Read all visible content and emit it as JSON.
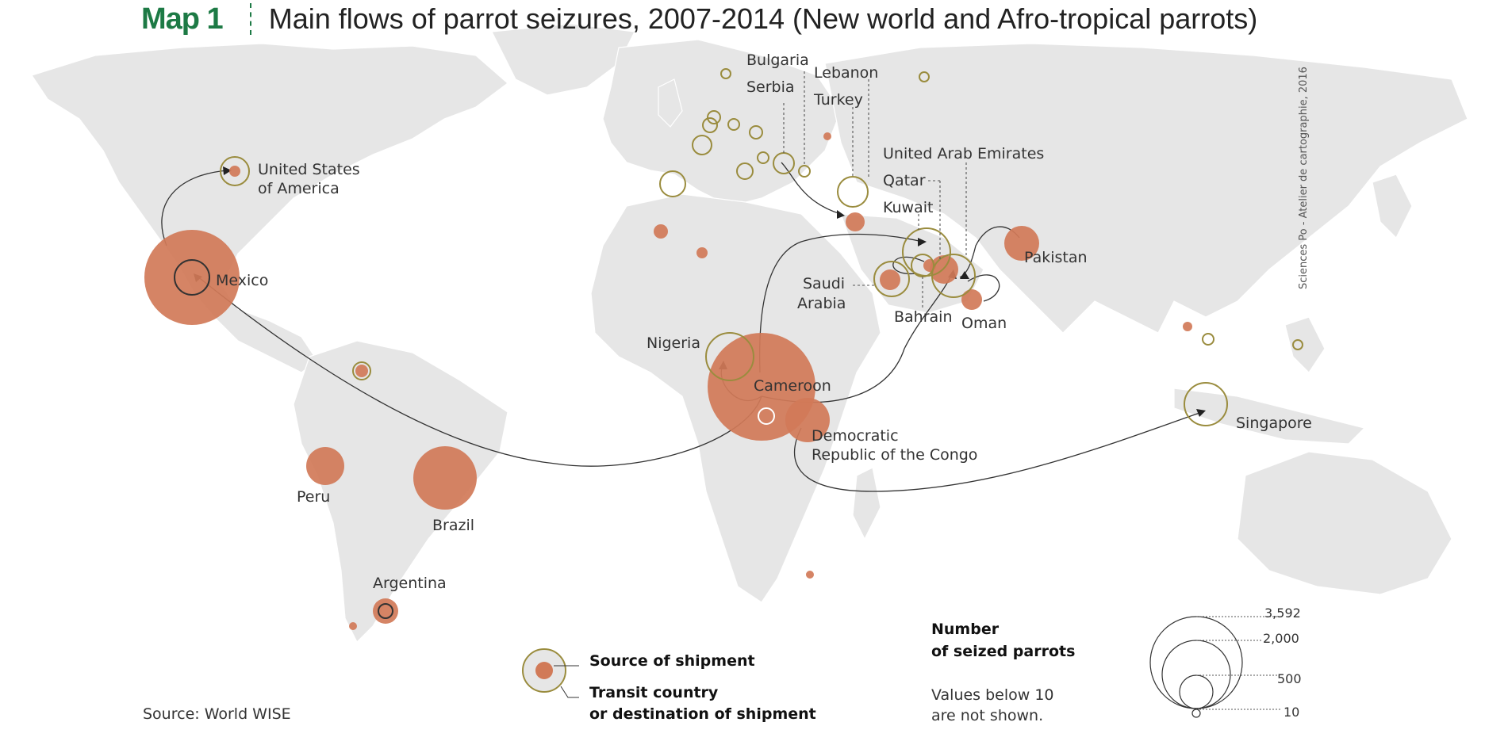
{
  "header": {
    "map_number": "Map 1",
    "title": "Main flows of parrot seizures, 2007-2014 (New world and Afro-tropical parrots)"
  },
  "countries": {
    "usa": "United States",
    "usa2": "of America",
    "mexico": "Mexico",
    "peru": "Peru",
    "brazil": "Brazil",
    "argentina": "Argentina",
    "nigeria": "Nigeria",
    "cameroon": "Cameroon",
    "drc": "Democratic",
    "drc2": "Republic of the Congo",
    "bulgaria": "Bulgaria",
    "serbia": "Serbia",
    "lebanon": "Lebanon",
    "turkey": "Turkey",
    "uae": "United Arab Emirates",
    "qatar": "Qatar",
    "kuwait": "Kuwait",
    "saudi": "Saudi",
    "saudi2": "Arabia",
    "bahrain": "Bahrain",
    "oman": "Oman",
    "pakistan": "Pakistan",
    "singapore": "Singapore"
  },
  "legend": {
    "source_label": "Source of shipment",
    "transit_label": "Transit country",
    "transit_label2": "or destination of shipment",
    "number_title": "Number",
    "number_title2": "of seized parrots",
    "below_note": "Values below 10",
    "below_note2": "are not shown.",
    "scale_values": [
      "3,592",
      "2,000",
      "500",
      "10"
    ]
  },
  "source_note": "Source: World WISE",
  "credit": "Sciences Po - Atelier de cartographie, 2016",
  "colors": {
    "land": "#e6e6e6",
    "source_fill": "#d17a58",
    "transit_stroke": "#9a8c3e",
    "title_green": "#1d7a45"
  }
}
